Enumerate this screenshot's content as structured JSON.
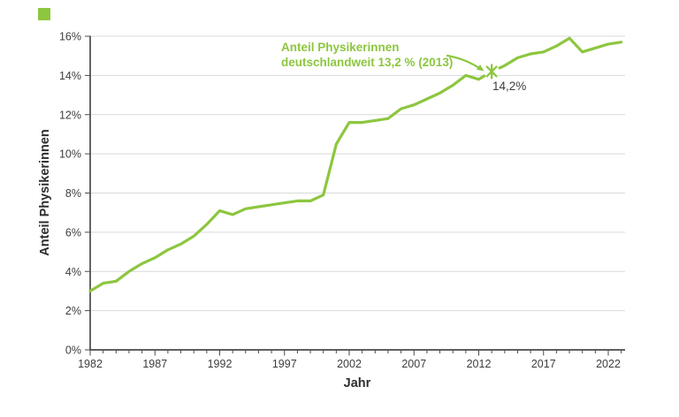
{
  "brand": {
    "square_color": "#8dc63f"
  },
  "colors": {
    "green": "#8dc63f",
    "axis": "#4a4a4a",
    "grid": "#d9d9d9",
    "text": "#3d3d3d"
  },
  "chart_data": {
    "type": "line",
    "title": "",
    "xlabel": "Jahr",
    "ylabel": "Anteil Physikerinnen",
    "x": [
      1982,
      1983,
      1984,
      1985,
      1986,
      1987,
      1988,
      1989,
      1990,
      1991,
      1992,
      1993,
      1994,
      1995,
      1996,
      1997,
      1998,
      1999,
      2000,
      2001,
      2002,
      2003,
      2004,
      2005,
      2006,
      2007,
      2008,
      2009,
      2010,
      2011,
      2012,
      2013,
      2014,
      2015,
      2016,
      2017,
      2018,
      2019,
      2020,
      2021,
      2022,
      2023
    ],
    "series": [
      {
        "name": "Anteil Physikerinnen",
        "color": "#8dc63f",
        "values": [
          3.0,
          3.4,
          3.5,
          4.0,
          4.4,
          4.7,
          5.1,
          5.4,
          5.8,
          6.4,
          7.1,
          6.9,
          7.2,
          7.3,
          7.4,
          7.5,
          7.6,
          7.6,
          7.9,
          10.5,
          11.6,
          11.6,
          11.7,
          11.8,
          12.3,
          12.5,
          12.8,
          13.1,
          13.5,
          14.0,
          13.8,
          14.2,
          14.5,
          14.9,
          15.1,
          15.2,
          15.5,
          15.9,
          15.2,
          15.4,
          15.6,
          15.7
        ]
      }
    ],
    "xlim": [
      1982,
      2023.3
    ],
    "ylim": [
      0,
      16
    ],
    "ytick_step": 2,
    "ytick_suffix": "%",
    "xticks_major": [
      1982,
      1987,
      1992,
      1997,
      2002,
      2007,
      2012,
      2017,
      2022
    ],
    "grid": "horizontal",
    "legend": "none",
    "annotation": {
      "line1": "Anteil Physikerinnen",
      "line2": "deutschlandweit 13,2 % (2013)",
      "marker": {
        "x": 2013,
        "y": 14.2,
        "label": "14,2%",
        "shape": "asterisk"
      }
    }
  }
}
